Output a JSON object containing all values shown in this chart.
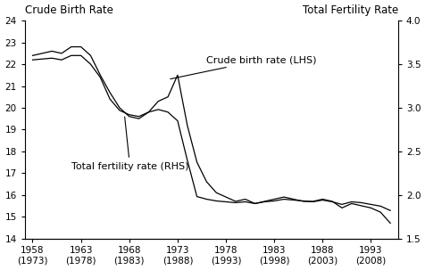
{
  "title": "",
  "ylabel_left": "Crude Birth Rate",
  "ylabel_right": "Total Fertility Rate",
  "ylim_left": [
    14,
    24
  ],
  "ylim_right": [
    1.5,
    4.0
  ],
  "yticks_left": [
    14,
    15,
    16,
    17,
    18,
    19,
    20,
    21,
    22,
    23,
    24
  ],
  "yticks_right": [
    1.5,
    2.0,
    2.5,
    3.0,
    3.5,
    4.0
  ],
  "xtick_labels_top": [
    "1958",
    "1963",
    "1968",
    "1973",
    "1978",
    "1983",
    "1988",
    "1993"
  ],
  "xtick_labels_bottom": [
    "(1973)",
    "(1978)",
    "(1983)",
    "(1988)",
    "(1993)",
    "(1998)",
    "(2003)",
    "(2008)"
  ],
  "cbr_label": "Crude birth rate (LHS)",
  "tfr_label": "Total fertility rate (RHS)",
  "years": [
    1958,
    1959,
    1960,
    1961,
    1962,
    1963,
    1964,
    1965,
    1966,
    1967,
    1968,
    1969,
    1970,
    1971,
    1972,
    1973,
    1974,
    1975,
    1976,
    1977,
    1978,
    1979,
    1980,
    1981,
    1982,
    1983,
    1984,
    1985,
    1986,
    1987,
    1988,
    1989,
    1990,
    1991,
    1992,
    1993,
    1994,
    1995
  ],
  "cbr": [
    22.4,
    22.5,
    22.6,
    22.5,
    22.8,
    22.8,
    22.4,
    21.5,
    20.7,
    20.0,
    19.6,
    19.5,
    19.8,
    20.3,
    20.5,
    21.5,
    19.2,
    17.5,
    16.6,
    16.1,
    15.9,
    15.7,
    15.8,
    15.6,
    15.7,
    15.8,
    15.9,
    15.8,
    15.7,
    15.7,
    15.8,
    15.7,
    15.4,
    15.6,
    15.5,
    15.4,
    15.2,
    14.7
  ],
  "tfr": [
    3.55,
    3.56,
    3.57,
    3.55,
    3.6,
    3.6,
    3.5,
    3.35,
    3.1,
    2.97,
    2.92,
    2.9,
    2.95,
    2.98,
    2.95,
    2.85,
    2.4,
    1.98,
    1.95,
    1.93,
    1.92,
    1.91,
    1.92,
    1.9,
    1.92,
    1.93,
    1.95,
    1.94,
    1.93,
    1.92,
    1.94,
    1.92,
    1.89,
    1.92,
    1.91,
    1.89,
    1.87,
    1.82
  ],
  "line_color": "#000000",
  "bg_color": "#ffffff",
  "font_size_axis_label": 8.5,
  "font_size_tick": 7.5,
  "font_size_annot": 8
}
